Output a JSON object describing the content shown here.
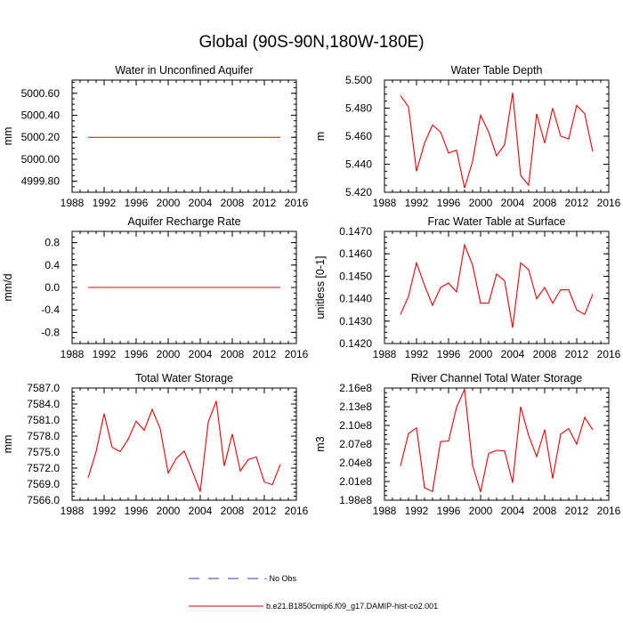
{
  "title": "Global (90S-90N,180W-180E)",
  "colors": {
    "series": "#ee0000",
    "no_obs": "#3a3aa8",
    "axis": "#000000"
  },
  "legend": {
    "entries": [
      {
        "label": "- No Obs",
        "style": "dashed"
      },
      {
        "label": "b.e21.B1850cmip6.f09_g17.DAMIP-hist-co2.001",
        "style": "solid"
      }
    ]
  },
  "chart_data": [
    {
      "type": "line",
      "title": "Water in Unconfined Aquifer",
      "ylabel": "mm",
      "xlabel": "",
      "xlim": [
        1988,
        2016
      ],
      "ylim": [
        4999.7,
        5000.72
      ],
      "xticks": [
        "1988",
        "1992",
        "1996",
        "2000",
        "2004",
        "2008",
        "2012",
        "2016"
      ],
      "yticks": [
        "4999.80",
        "5000.00",
        "5000.20",
        "5000.40",
        "5000.60"
      ],
      "x": [
        1990,
        1991,
        1992,
        1993,
        1994,
        1995,
        1996,
        1997,
        1998,
        1999,
        2000,
        2001,
        2002,
        2003,
        2004,
        2005,
        2006,
        2007,
        2008,
        2009,
        2010,
        2011,
        2012,
        2013,
        2014
      ],
      "values": [
        5000.2,
        5000.2,
        5000.2,
        5000.2,
        5000.2,
        5000.2,
        5000.2,
        5000.2,
        5000.2,
        5000.2,
        5000.2,
        5000.2,
        5000.2,
        5000.2,
        5000.2,
        5000.2,
        5000.2,
        5000.2,
        5000.2,
        5000.2,
        5000.2,
        5000.2,
        5000.2,
        5000.2,
        5000.2
      ]
    },
    {
      "type": "line",
      "title": "Water Table Depth",
      "ylabel": "m",
      "xlabel": "",
      "xlim": [
        1988,
        2016
      ],
      "ylim": [
        5.42,
        5.5
      ],
      "xticks": [
        "1988",
        "1992",
        "1996",
        "2000",
        "2004",
        "2008",
        "2012",
        "2016"
      ],
      "yticks": [
        "5.420",
        "5.440",
        "5.460",
        "5.480",
        "5.500"
      ],
      "x": [
        1990,
        1991,
        1992,
        1993,
        1994,
        1995,
        1996,
        1997,
        1998,
        1999,
        2000,
        2001,
        2002,
        2003,
        2004,
        2005,
        2006,
        2007,
        2008,
        2009,
        2010,
        2011,
        2012,
        2013,
        2014
      ],
      "values": [
        5.489,
        5.481,
        5.435,
        5.455,
        5.468,
        5.463,
        5.448,
        5.45,
        5.423,
        5.442,
        5.475,
        5.463,
        5.446,
        5.454,
        5.491,
        5.432,
        5.425,
        5.476,
        5.455,
        5.48,
        5.46,
        5.458,
        5.482,
        5.476,
        5.449
      ]
    },
    {
      "type": "line",
      "title": "Aquifer Recharge Rate",
      "ylabel": "mm/d",
      "xlabel": "",
      "xlim": [
        1988,
        2016
      ],
      "ylim": [
        -1.0,
        1.0
      ],
      "xticks": [
        "1988",
        "1992",
        "1996",
        "2000",
        "2004",
        "2008",
        "2012",
        "2016"
      ],
      "yticks": [
        "-0.8",
        "-0.4",
        "0.0",
        "0.4",
        "0.8"
      ],
      "x": [
        1990,
        1991,
        1992,
        1993,
        1994,
        1995,
        1996,
        1997,
        1998,
        1999,
        2000,
        2001,
        2002,
        2003,
        2004,
        2005,
        2006,
        2007,
        2008,
        2009,
        2010,
        2011,
        2012,
        2013,
        2014
      ],
      "values": [
        0,
        0,
        0,
        0,
        0,
        0,
        0,
        0,
        0,
        0,
        0,
        0,
        0,
        0,
        0,
        0,
        0,
        0,
        0,
        0,
        0,
        0,
        0,
        0,
        0
      ]
    },
    {
      "type": "line",
      "title": "Frac Water Table at Surface",
      "ylabel": "unitless [0-1]",
      "xlabel": "",
      "xlim": [
        1988,
        2016
      ],
      "ylim": [
        0.142,
        0.147
      ],
      "xticks": [
        "1988",
        "1992",
        "1996",
        "2000",
        "2004",
        "2008",
        "2012",
        "2016"
      ],
      "yticks": [
        "0.1420",
        "0.1430",
        "0.1440",
        "0.1450",
        "0.1460",
        "0.1470"
      ],
      "x": [
        1990,
        1991,
        1992,
        1993,
        1994,
        1995,
        1996,
        1997,
        1998,
        1999,
        2000,
        2001,
        2002,
        2003,
        2004,
        2005,
        2006,
        2007,
        2008,
        2009,
        2010,
        2011,
        2012,
        2013,
        2014
      ],
      "values": [
        0.1433,
        0.1441,
        0.1456,
        0.1446,
        0.1437,
        0.1445,
        0.1447,
        0.1443,
        0.1464,
        0.1455,
        0.1438,
        0.1438,
        0.1451,
        0.1448,
        0.1427,
        0.1456,
        0.1453,
        0.144,
        0.1445,
        0.1438,
        0.1444,
        0.1444,
        0.1435,
        0.1433,
        0.1442
      ]
    },
    {
      "type": "line",
      "title": "Total Water Storage",
      "ylabel": "mm",
      "xlabel": "",
      "xlim": [
        1988,
        2016
      ],
      "ylim": [
        7566.0,
        7587.0
      ],
      "xticks": [
        "1988",
        "1992",
        "1996",
        "2000",
        "2004",
        "2008",
        "2012",
        "2016"
      ],
      "yticks": [
        "7566.0",
        "7569.0",
        "7572.0",
        "7575.0",
        "7578.0",
        "7581.0",
        "7584.0",
        "7587.0"
      ],
      "x": [
        1990,
        1991,
        1992,
        1993,
        1994,
        1995,
        1996,
        1997,
        1998,
        1999,
        2000,
        2001,
        2002,
        2003,
        2004,
        2005,
        2006,
        2007,
        2008,
        2009,
        2010,
        2011,
        2012,
        2013,
        2014
      ],
      "values": [
        7570.2,
        7575.1,
        7582.2,
        7575.9,
        7575.1,
        7577.4,
        7580.8,
        7579.1,
        7583.0,
        7579.4,
        7571.1,
        7573.8,
        7575.2,
        7571.5,
        7567.6,
        7580.6,
        7584.6,
        7572.4,
        7578.4,
        7571.5,
        7573.6,
        7574.1,
        7569.4,
        7568.9,
        7572.7
      ]
    },
    {
      "type": "line",
      "title": "River Channel Total Water Storage",
      "ylabel": "m3",
      "xlabel": "",
      "xlim": [
        1988,
        2016
      ],
      "ylim": [
        198000000.0,
        216000000.0
      ],
      "xticks": [
        "1988",
        "1992",
        "1996",
        "2000",
        "2004",
        "2008",
        "2012",
        "2016"
      ],
      "yticks": [
        "1.98e8",
        "2.01e8",
        "2.04e8",
        "2.07e8",
        "2.10e8",
        "2.13e8",
        "2.16e8"
      ],
      "x": [
        1990,
        1991,
        1992,
        1993,
        1994,
        1995,
        1996,
        1997,
        1998,
        1999,
        2000,
        2001,
        2002,
        2003,
        2004,
        2005,
        2006,
        2007,
        2008,
        2009,
        2010,
        2011,
        2012,
        2013,
        2014
      ],
      "values": [
        203500000,
        208700000,
        209600000,
        200000000,
        199400000,
        207400000,
        207500000,
        212900000,
        215800000,
        203600000,
        199300000,
        205500000,
        206000000,
        205900000,
        200800000,
        213000000,
        208400000,
        205000000,
        209300000,
        201500000,
        208600000,
        209500000,
        207000000,
        211300000,
        209300000
      ]
    }
  ]
}
